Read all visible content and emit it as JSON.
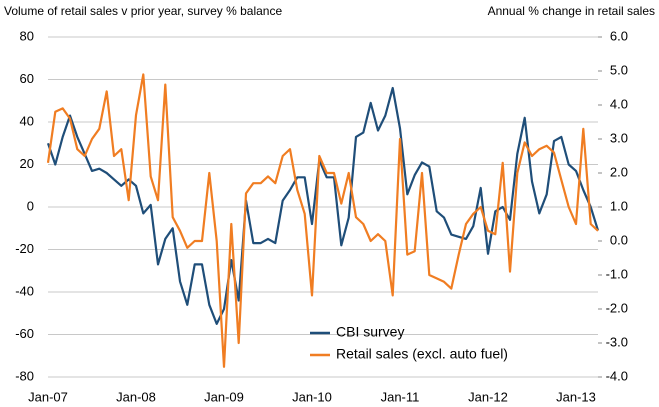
{
  "chart_data": {
    "type": "line",
    "ylabel": "Volume of retail sales v prior year, survey % balance",
    "y2label": "Annual % change in retail sales",
    "categories": [
      "Jan-07",
      null,
      null,
      null,
      null,
      null,
      null,
      null,
      null,
      null,
      null,
      null,
      "Jan-08",
      null,
      null,
      null,
      null,
      null,
      null,
      null,
      null,
      null,
      null,
      null,
      "Jan-09",
      null,
      null,
      null,
      null,
      null,
      null,
      null,
      null,
      null,
      null,
      null,
      "Jan-10",
      null,
      null,
      null,
      null,
      null,
      null,
      null,
      null,
      null,
      null,
      null,
      "Jan-11",
      null,
      null,
      null,
      null,
      null,
      null,
      null,
      null,
      null,
      null,
      null,
      "Jan-12",
      null,
      null,
      null,
      null,
      null,
      null,
      null,
      null,
      null,
      null,
      null,
      "Jan-13",
      null,
      null,
      null
    ],
    "ylim": [
      -80,
      80
    ],
    "yticks": [
      -80,
      -60,
      -40,
      -20,
      0,
      20,
      40,
      60,
      80
    ],
    "y2lim": [
      -4,
      6
    ],
    "y2ticks": [
      {
        "value": -4,
        "label": "-4.0"
      },
      {
        "value": -3,
        "label": "-3.0"
      },
      {
        "value": -2,
        "label": "-2.0"
      },
      {
        "value": -1,
        "label": "-1.0"
      },
      {
        "value": 0,
        "label": "0.0"
      },
      {
        "value": 1,
        "label": "1.0"
      },
      {
        "value": 2,
        "label": "2.0"
      },
      {
        "value": 3,
        "label": "3.0"
      },
      {
        "value": 4,
        "label": "4.0"
      },
      {
        "value": 5,
        "label": "5.0"
      },
      {
        "value": 6,
        "label": "6.0"
      }
    ],
    "grid": true,
    "legend": "bottom-center",
    "series": [
      {
        "name": "CBI survey",
        "color": "#1f4e79",
        "values": [
          30,
          20,
          33,
          43,
          33,
          25,
          17,
          18,
          16,
          13,
          10,
          13,
          10,
          -3,
          1,
          -27,
          -15,
          -10,
          -35,
          -46,
          -27,
          -27,
          -46,
          -55,
          -48,
          -25,
          -44,
          3,
          -17,
          -17,
          -15,
          -17,
          3,
          8,
          14,
          14,
          -8,
          22,
          14,
          14,
          -18,
          -5,
          33,
          35,
          49,
          36,
          43,
          56,
          37,
          6,
          15,
          21,
          19,
          -2,
          -5,
          -13,
          -14,
          -15,
          -9,
          9,
          -22,
          -2,
          0,
          -6,
          25,
          42,
          12,
          -3,
          6,
          31,
          33,
          20,
          17,
          8,
          0,
          -11
        ]
      },
      {
        "name": "Retail sales (excl. auto fuel)",
        "color": "#f07d22",
        "axis": "y2",
        "values": [
          2.3,
          3.8,
          3.9,
          3.6,
          2.7,
          2.5,
          3.0,
          3.3,
          4.4,
          2.5,
          2.7,
          1.2,
          3.7,
          4.9,
          1.9,
          1.2,
          4.6,
          0.7,
          0.3,
          -0.2,
          0.0,
          0.0,
          2.0,
          0.0,
          -3.7,
          0.5,
          -3.0,
          1.4,
          1.7,
          1.7,
          1.9,
          1.7,
          2.5,
          2.7,
          1.5,
          0.8,
          -1.6,
          2.5,
          2.0,
          2.0,
          1.1,
          2.0,
          0.7,
          0.5,
          0.0,
          0.2,
          0.0,
          -1.6,
          3.0,
          -0.4,
          -0.3,
          2.0,
          -1.0,
          -1.1,
          -1.2,
          -1.4,
          -0.4,
          0.5,
          0.8,
          1.0,
          0.3,
          0.2,
          2.3,
          -0.9,
          2.0,
          2.9,
          2.5,
          2.7,
          2.8,
          2.6,
          1.8,
          1.0,
          0.5,
          3.3,
          0.5,
          0.3
        ]
      }
    ]
  }
}
